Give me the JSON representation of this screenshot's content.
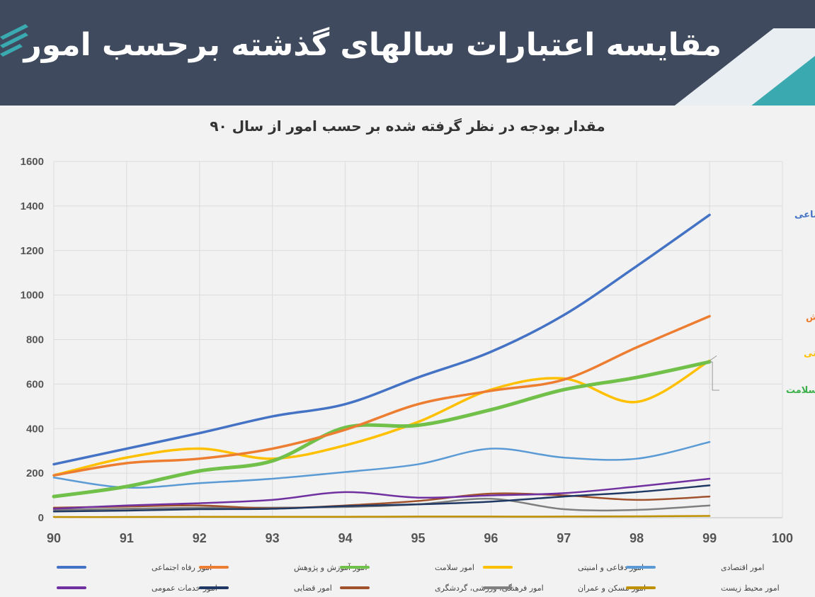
{
  "header": {
    "title": "مقایسه اعتبارات سالهای گذشته برحسب امور"
  },
  "chart_data": {
    "type": "line",
    "title": "مقدار بودجه در نظر گرفته شده بر حسب امور از سال ۹۰",
    "xlim": [
      90,
      100
    ],
    "ylim": [
      0,
      1600
    ],
    "xticks": [
      90,
      91,
      92,
      93,
      94,
      95,
      96,
      97,
      98,
      99,
      100
    ],
    "yticks": [
      0,
      200,
      400,
      600,
      800,
      1000,
      1200,
      1400,
      1600
    ],
    "grid": true,
    "legend_position": "bottom",
    "x": [
      90,
      91,
      92,
      93,
      94,
      95,
      96,
      97,
      98,
      99
    ],
    "series": [
      {
        "name": "امور رفاه اجتماعی",
        "color": "#4472c4",
        "values": [
          240,
          310,
          380,
          455,
          510,
          630,
          745,
          910,
          1130,
          1360
        ],
        "end_label": "امور رفاه اجتماعی"
      },
      {
        "name": "امور آموزش و پژوهش",
        "color": "#ed7d31",
        "values": [
          190,
          245,
          265,
          310,
          395,
          510,
          570,
          620,
          765,
          905
        ],
        "end_label": "امور آموزش و پژوهش"
      },
      {
        "name": "امور سلامت",
        "color": "#70c04a",
        "values": [
          95,
          140,
          210,
          255,
          405,
          415,
          485,
          575,
          630,
          700
        ],
        "end_label": "امور سلامت"
      },
      {
        "name": "امور دفاعی و امنیتی",
        "color": "#ffc000",
        "values": [
          190,
          270,
          310,
          265,
          325,
          430,
          575,
          625,
          520,
          705
        ],
        "end_label": "امور دفاعی و امنیتی"
      },
      {
        "name": "امور اقتصادی",
        "color": "#5b9bd5",
        "values": [
          180,
          135,
          155,
          175,
          205,
          240,
          310,
          270,
          265,
          340
        ]
      },
      {
        "name": "امور خدمات عمومی",
        "color": "#7030a0",
        "values": [
          40,
          55,
          65,
          80,
          115,
          90,
          100,
          110,
          140,
          175
        ]
      },
      {
        "name": "امور قضایی",
        "color": "#1f3864",
        "values": [
          28,
          32,
          38,
          40,
          52,
          60,
          72,
          95,
          115,
          145
        ]
      },
      {
        "name": "امور فرهنگی، ورزشی، گردشگری",
        "color": "#a0522d",
        "values": [
          45,
          50,
          55,
          42,
          55,
          75,
          108,
          100,
          80,
          95
        ]
      },
      {
        "name": "امور مسکن و عمران",
        "color": "#7f7f7f",
        "values": [
          35,
          40,
          45,
          45,
          48,
          60,
          85,
          38,
          35,
          55
        ]
      },
      {
        "name": "امور محیط زیست",
        "color": "#bf9000",
        "values": [
          3,
          3,
          4,
          4,
          4,
          5,
          5,
          5,
          6,
          8
        ]
      }
    ]
  }
}
